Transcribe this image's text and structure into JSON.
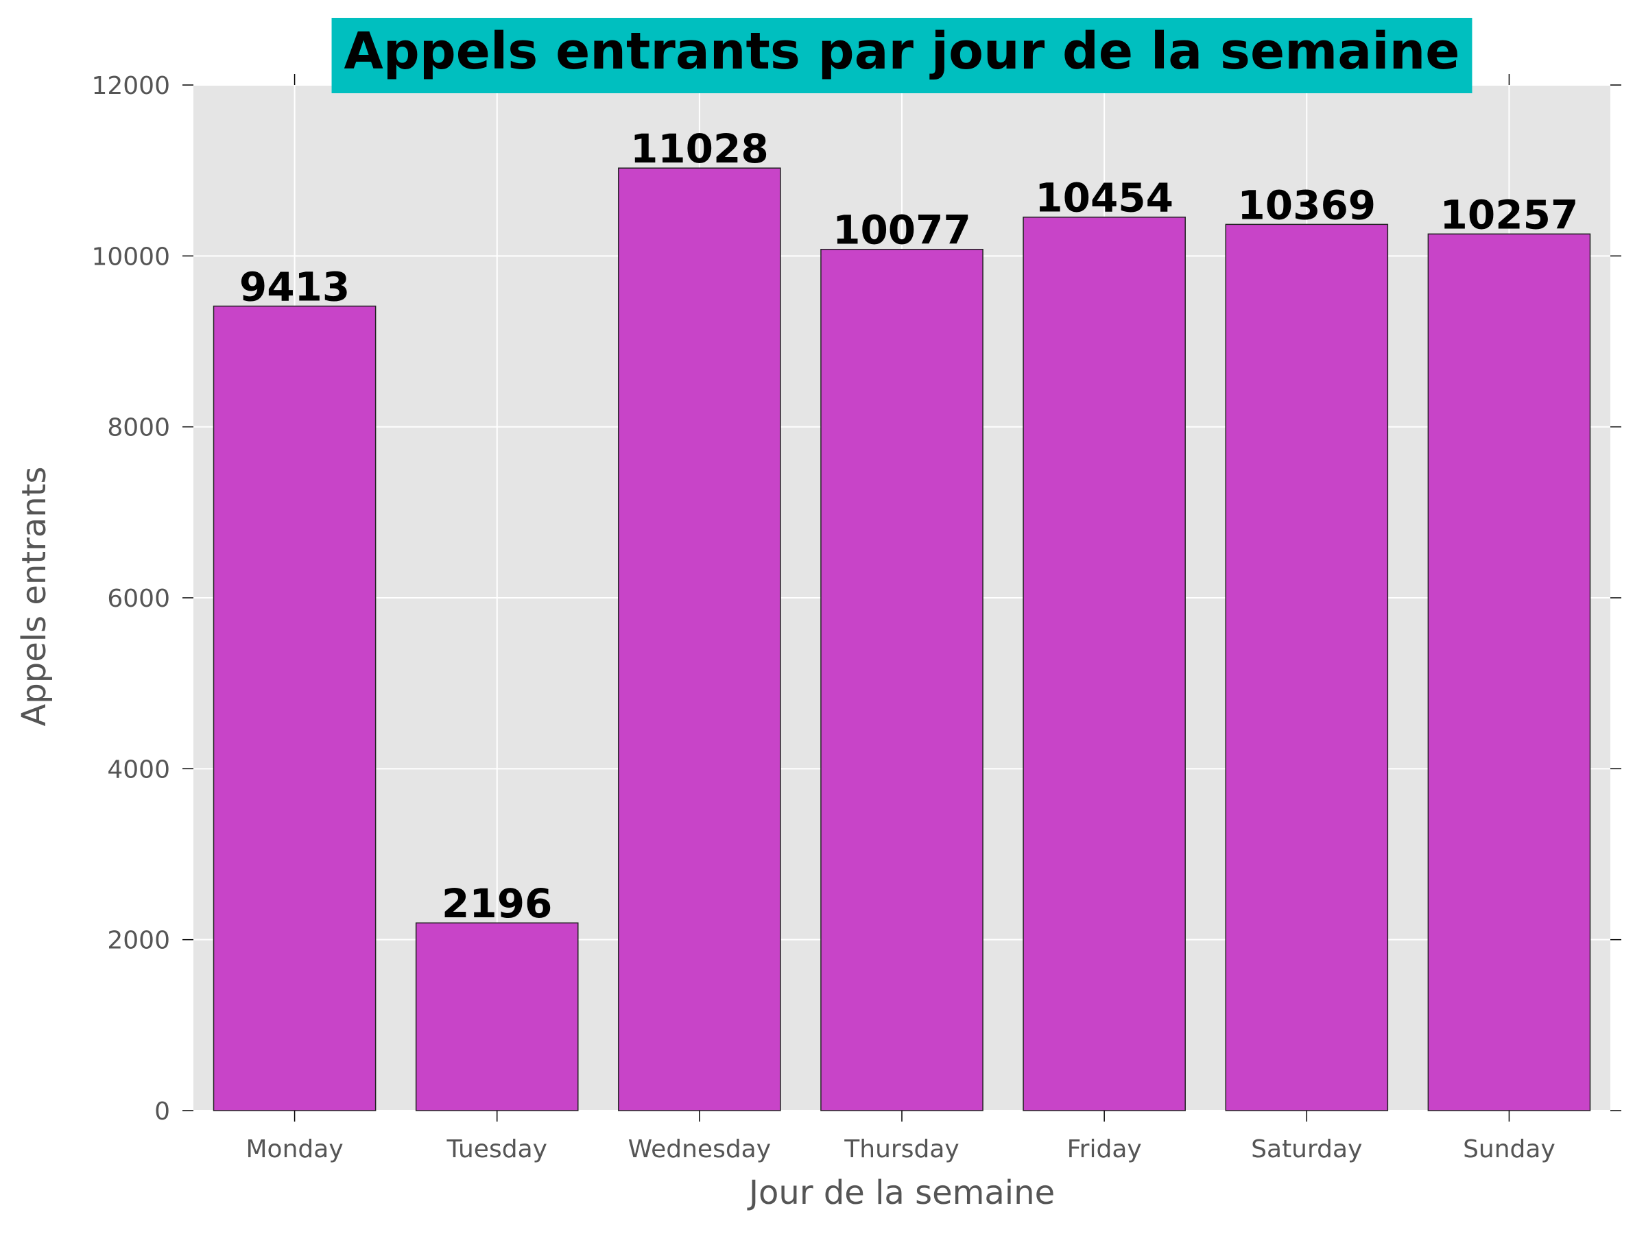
{
  "chart_data": {
    "type": "bar",
    "title": "Appels entrants par jour de la semaine",
    "xlabel": "Jour de la semaine",
    "ylabel": "Appels entrants",
    "categories": [
      "Monday",
      "Tuesday",
      "Wednesday",
      "Thursday",
      "Friday",
      "Saturday",
      "Sunday"
    ],
    "values": [
      9413,
      2196,
      11028,
      10077,
      10454,
      10369,
      10257
    ],
    "ylim": [
      0,
      12000
    ],
    "yticks": [
      0,
      2000,
      4000,
      6000,
      8000,
      10000,
      12000
    ],
    "grid": true,
    "legend": "none",
    "colors": {
      "bar": "#c844c8",
      "title_box": "#00bfbf",
      "plot_background": "#e5e5e5",
      "grid": "#ffffff"
    }
  }
}
